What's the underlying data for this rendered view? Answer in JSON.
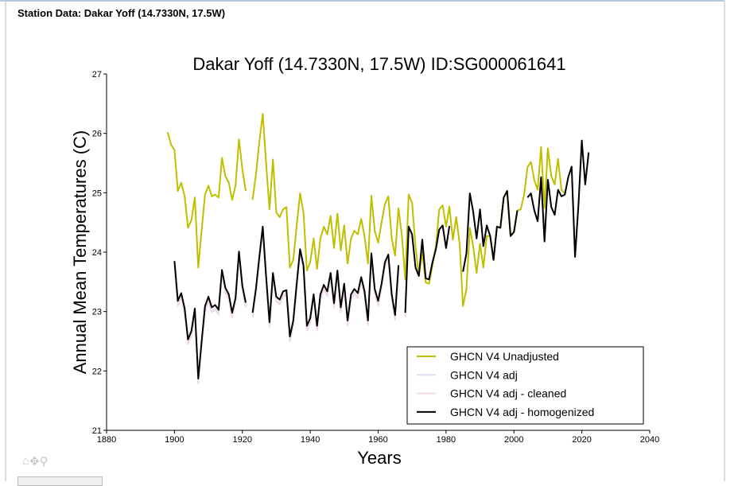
{
  "header": {
    "title": "Station Data: Dakar Yoff (14.7330N, 17.5W)"
  },
  "toolbar": {
    "home_icon": "⌂",
    "pan_icon": "✥",
    "zoom_icon": "⚲"
  },
  "chart_data": {
    "type": "line",
    "title": "Dakar Yoff (14.7330N, 17.5W) ID:SG000061641",
    "xlabel": "Years",
    "ylabel": "Annual Mean Temperatures (C)",
    "xlim": [
      1880,
      2040
    ],
    "ylim": [
      21,
      27
    ],
    "xticks": [
      "1880",
      "1900",
      "1920",
      "1940",
      "1960",
      "1980",
      "2000",
      "2020",
      "2040"
    ],
    "yticks": [
      "21",
      "22",
      "23",
      "24",
      "25",
      "26",
      "27"
    ],
    "grid": false,
    "legend_position": "bottom-right",
    "series": [
      {
        "name": "GHCN V4 Unadjusted",
        "color": "#bfbf00",
        "x_start": 1898,
        "values": [
          26.02,
          25.81,
          25.72,
          25.03,
          25.17,
          24.94,
          24.41,
          24.54,
          24.92,
          23.74,
          24.36,
          24.97,
          25.12,
          24.94,
          24.97,
          24.92,
          25.59,
          25.28,
          25.17,
          24.88,
          25.12,
          25.9,
          25.39,
          25.03,
          null,
          24.88,
          25.3,
          25.86,
          26.33,
          25.5,
          24.72,
          25.56,
          24.67,
          24.59,
          24.72,
          24.76,
          23.74,
          23.87,
          24.45,
          24.99,
          24.67,
          23.69,
          23.83,
          24.23,
          23.72,
          24.23,
          24.43,
          24.3,
          24.61,
          24.07,
          24.65,
          24.03,
          24.45,
          23.81,
          24.23,
          24.36,
          24.3,
          24.56,
          24.27,
          23.81,
          24.95,
          24.36,
          24.16,
          24.5,
          24.81,
          24.94,
          24.23,
          23.94,
          24.74,
          24.27,
          23.54,
          24.97,
          24.83,
          24.1,
          23.6,
          24.0,
          23.49,
          23.47,
          23.78,
          24.1,
          24.72,
          24.79,
          24.43,
          24.77,
          24.21,
          24.59,
          24.14,
          23.09,
          23.38,
          24.41,
          24.1,
          23.65,
          24.14,
          23.74,
          24.27,
          24.27,
          23.87,
          24.43,
          24.41,
          24.92,
          25.03,
          24.27,
          24.34,
          24.7,
          24.72,
          24.97,
          25.43,
          25.52,
          25.21,
          25.05,
          25.77,
          24.74,
          25.75,
          25.28,
          25.14,
          25.57,
          25.05,
          24.99
        ]
      },
      {
        "name": "GHCN V4 adj",
        "color": "#dcdcf5",
        "base_series": "GHCN V4 adj - homogenized",
        "offset_until_1970": -0.08
      },
      {
        "name": "GHCN V4 adj - cleaned",
        "color": "#f5d8e6",
        "base_series": "GHCN V4 adj - homogenized",
        "offset_until_1970": -0.06
      },
      {
        "name": "GHCN V4 adj - homogenized",
        "color": "#000000",
        "x_start": 1900,
        "values": [
          23.85,
          23.18,
          23.31,
          23.05,
          22.53,
          22.67,
          23.05,
          21.87,
          22.49,
          23.09,
          23.25,
          23.07,
          23.11,
          23.03,
          23.7,
          23.4,
          23.29,
          22.98,
          23.23,
          24.01,
          23.43,
          23.15,
          null,
          22.98,
          23.38,
          23.92,
          24.43,
          23.6,
          22.82,
          23.65,
          23.25,
          23.2,
          23.34,
          23.36,
          22.58,
          22.85,
          23.47,
          24.05,
          23.78,
          22.76,
          22.89,
          23.29,
          22.76,
          23.29,
          23.45,
          23.34,
          23.65,
          23.14,
          23.69,
          23.07,
          23.47,
          22.85,
          23.29,
          23.38,
          23.31,
          23.58,
          23.34,
          22.85,
          23.98,
          23.38,
          23.18,
          23.47,
          23.83,
          23.96,
          23.29,
          22.94,
          23.78,
          null,
          22.98,
          24.43,
          24.3,
          23.74,
          23.6,
          24.21,
          23.56,
          23.54,
          23.83,
          24.05,
          24.38,
          24.45,
          24.07,
          24.44,
          null,
          null,
          null,
          23.67,
          23.98,
          24.99,
          24.68,
          24.23,
          24.72,
          24.1,
          24.45,
          24.27,
          23.87,
          24.43,
          24.41,
          24.92,
          25.03,
          24.27,
          24.34,
          24.7,
          null,
          null,
          24.92,
          24.99,
          24.7,
          24.52,
          25.26,
          24.18,
          25.22,
          24.76,
          24.63,
          25.05,
          24.94,
          24.97,
          25.26,
          25.44,
          23.92,
          24.8,
          25.88,
          25.14,
          25.68
        ]
      }
    ]
  }
}
